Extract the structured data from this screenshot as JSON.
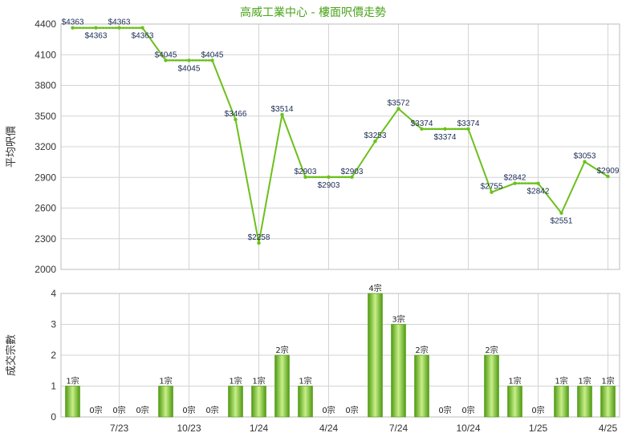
{
  "colors": {
    "title": "#4aa31a",
    "line": "#6cc01c",
    "bar_dark": "#4f9a12",
    "bar_light": "#c8ef8a",
    "grid": "#d4d4d4"
  },
  "chart_data": [
    {
      "type": "line",
      "title": "高威工業中心 - 樓面呎價走勢",
      "ylabel": "平均呎價",
      "ylim": [
        2000,
        4400
      ],
      "yticks": [
        2000,
        2300,
        2600,
        2900,
        3200,
        3500,
        3800,
        4100,
        4400
      ],
      "grid": true,
      "points": [
        {
          "label": "$4363",
          "value": 4363,
          "pos": "above"
        },
        {
          "label": "$4363",
          "value": 4363,
          "pos": "below"
        },
        {
          "label": "$4363",
          "value": 4363,
          "pos": "above"
        },
        {
          "label": "$4363",
          "value": 4363,
          "pos": "below"
        },
        {
          "label": "$4045",
          "value": 4045,
          "pos": "above"
        },
        {
          "label": "$4045",
          "value": 4045,
          "pos": "below"
        },
        {
          "label": "$4045",
          "value": 4045,
          "pos": "above"
        },
        {
          "label": "$3466",
          "value": 3466,
          "pos": "above"
        },
        {
          "label": "$2258",
          "value": 2258,
          "pos": "above"
        },
        {
          "label": "$3514",
          "value": 3514,
          "pos": "above"
        },
        {
          "label": "$2903",
          "value": 2903,
          "pos": "above"
        },
        {
          "label": "$2903",
          "value": 2903,
          "pos": "below"
        },
        {
          "label": "$2903",
          "value": 2903,
          "pos": "above"
        },
        {
          "label": "$3253",
          "value": 3253,
          "pos": "above"
        },
        {
          "label": "$3572",
          "value": 3572,
          "pos": "above"
        },
        {
          "label": "$3374",
          "value": 3374,
          "pos": "above"
        },
        {
          "label": "$3374",
          "value": 3374,
          "pos": "below"
        },
        {
          "label": "$3374",
          "value": 3374,
          "pos": "above"
        },
        {
          "label": "$2755",
          "value": 2755,
          "pos": "above"
        },
        {
          "label": "$2842",
          "value": 2842,
          "pos": "above"
        },
        {
          "label": "$2842",
          "value": 2842,
          "pos": "below"
        },
        {
          "label": "$2551",
          "value": 2551,
          "pos": "below"
        },
        {
          "label": "$3053",
          "value": 3053,
          "pos": "above"
        },
        {
          "label": "$2909",
          "value": 2909,
          "pos": "above"
        }
      ],
      "dotted_segments": [
        0,
        1,
        2,
        4,
        5,
        10,
        11,
        15,
        16,
        19
      ]
    },
    {
      "type": "bar",
      "ylabel": "成交宗數",
      "ylim": [
        0,
        4
      ],
      "yticks": [
        0,
        1,
        2,
        3,
        4
      ],
      "grid": true,
      "values": [
        1,
        0,
        0,
        0,
        1,
        0,
        0,
        1,
        1,
        2,
        1,
        0,
        0,
        4,
        3,
        2,
        0,
        0,
        2,
        1,
        0,
        1,
        1,
        1
      ],
      "bar_labels": [
        "1宗",
        "0宗",
        "0宗",
        "0宗",
        "1宗",
        "0宗",
        "0宗",
        "1宗",
        "1宗",
        "2宗",
        "1宗",
        "0宗",
        "0宗",
        "4宗",
        "3宗",
        "2宗",
        "0宗",
        "0宗",
        "2宗",
        "1宗",
        "0宗",
        "1宗",
        "1宗",
        "1宗"
      ],
      "xticks": [
        {
          "index": 2,
          "label": "7/23"
        },
        {
          "index": 5,
          "label": "10/23"
        },
        {
          "index": 8,
          "label": "1/24"
        },
        {
          "index": 11,
          "label": "4/24"
        },
        {
          "index": 14,
          "label": "7/24"
        },
        {
          "index": 17,
          "label": "10/24"
        },
        {
          "index": 20,
          "label": "1/25"
        },
        {
          "index": 23,
          "label": "4/25"
        }
      ]
    }
  ]
}
